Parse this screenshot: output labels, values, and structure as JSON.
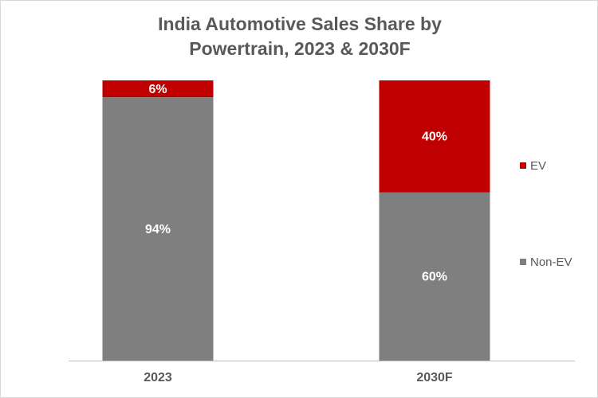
{
  "chart_data": {
    "type": "stacked-bar",
    "title": "India Automotive Sales Share by Powertrain, 2023 & 2030F",
    "categories": [
      "2023",
      "2030F"
    ],
    "series": [
      {
        "name": "Non-EV",
        "color": "#7f7f7f",
        "values": [
          94,
          60
        ],
        "value_labels": [
          "94%",
          "60%"
        ]
      },
      {
        "name": "EV",
        "color": "#c00000",
        "values": [
          6,
          40
        ],
        "value_labels": [
          "6%",
          "40%"
        ]
      }
    ],
    "legend": "right"
  }
}
